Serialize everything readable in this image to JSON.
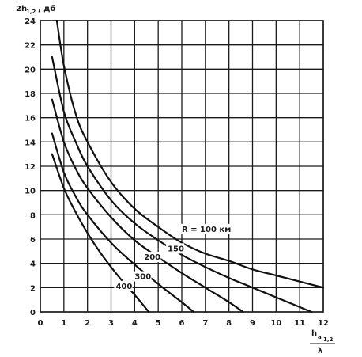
{
  "chart_data": {
    "type": "line",
    "ylabel_main": "2h",
    "ylabel_sub": "1,2",
    "ylabel_unit": ", дб",
    "xlabel_main": "h",
    "xlabel_sub_a": "a",
    "xlabel_sub_b": "1,2",
    "xlabel_den": "λ",
    "xlim": [
      0,
      12
    ],
    "ylim": [
      0,
      24
    ],
    "xticks": [
      0,
      1,
      2,
      3,
      4,
      5,
      6,
      7,
      8,
      9,
      10,
      11,
      12
    ],
    "yticks": [
      0,
      2,
      4,
      6,
      8,
      10,
      12,
      14,
      16,
      18,
      20,
      22,
      24
    ],
    "grid": true,
    "series": [
      {
        "name": "R = 100 км",
        "x": [
          0.7,
          1.0,
          1.5,
          2.0,
          3.0,
          4.0,
          5.0,
          6.0,
          7.0,
          8.0,
          9.0,
          10.0,
          11.0,
          12.0
        ],
        "values": [
          24.0,
          20.3,
          16.3,
          14.0,
          10.7,
          8.5,
          7.0,
          5.7,
          4.8,
          4.2,
          3.5,
          3.0,
          2.5,
          2.0
        ]
      },
      {
        "name": "150",
        "x": [
          0.5,
          1.0,
          1.5,
          2.0,
          3.0,
          4.0,
          5.0,
          6.0,
          7.0,
          8.0,
          9.0,
          10.0,
          11.0,
          11.5
        ],
        "values": [
          21.0,
          16.5,
          14.0,
          12.0,
          9.2,
          7.3,
          5.9,
          4.7,
          3.7,
          2.8,
          2.0,
          1.2,
          0.4,
          0.0
        ]
      },
      {
        "name": "200",
        "x": [
          0.5,
          1.0,
          1.5,
          2.0,
          3.0,
          4.0,
          5.0,
          6.0,
          7.0,
          8.0,
          8.6
        ],
        "values": [
          17.5,
          14.0,
          11.8,
          10.2,
          7.8,
          5.9,
          4.5,
          3.2,
          2.0,
          0.8,
          0.0
        ]
      },
      {
        "name": "300",
        "x": [
          0.5,
          1.0,
          1.5,
          2.0,
          3.0,
          4.0,
          5.0,
          6.0,
          6.5
        ],
        "values": [
          14.7,
          11.5,
          9.5,
          8.0,
          5.7,
          3.9,
          2.3,
          0.8,
          0.0
        ]
      },
      {
        "name": "400",
        "x": [
          0.5,
          1.0,
          1.5,
          2.0,
          2.5,
          3.0,
          3.5,
          4.0,
          4.6
        ],
        "values": [
          13.0,
          10.2,
          8.2,
          6.5,
          5.0,
          3.7,
          2.5,
          1.4,
          0.0
        ]
      }
    ],
    "labels": [
      {
        "text": "R = 100 км",
        "x": 6.0,
        "y": 6.6
      },
      {
        "text": "150",
        "x": 5.4,
        "y": 5.0
      },
      {
        "text": "200",
        "x": 4.4,
        "y": 4.3
      },
      {
        "text": "300",
        "x": 4.0,
        "y": 2.7
      },
      {
        "text": "400",
        "x": 3.2,
        "y": 1.9
      }
    ]
  }
}
